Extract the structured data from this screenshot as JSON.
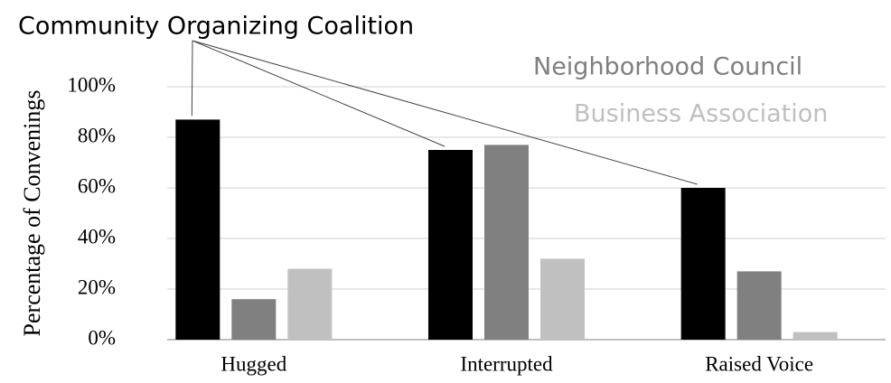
{
  "chart_data": {
    "type": "bar",
    "ylabel": "Percentage of Convenings",
    "categories": [
      "Hugged",
      "Interrupted",
      "Raised Voice"
    ],
    "series": [
      {
        "name": "Community Organizing Coalition",
        "color": "#000000",
        "values": [
          87,
          75,
          60
        ]
      },
      {
        "name": "Neighborhood Council",
        "color": "#808080",
        "values": [
          16,
          77,
          27
        ]
      },
      {
        "name": "Business Association",
        "color": "#c0c0c0",
        "values": [
          28,
          32,
          3
        ]
      }
    ],
    "ylim": [
      0,
      100
    ],
    "yticks": [
      {
        "value": 0,
        "label": "0%"
      },
      {
        "value": 20,
        "label": "20%"
      },
      {
        "value": 40,
        "label": "40%"
      },
      {
        "value": 60,
        "label": "60%"
      },
      {
        "value": 80,
        "label": "80%"
      },
      {
        "value": 100,
        "label": "100%"
      }
    ],
    "grid": true
  }
}
